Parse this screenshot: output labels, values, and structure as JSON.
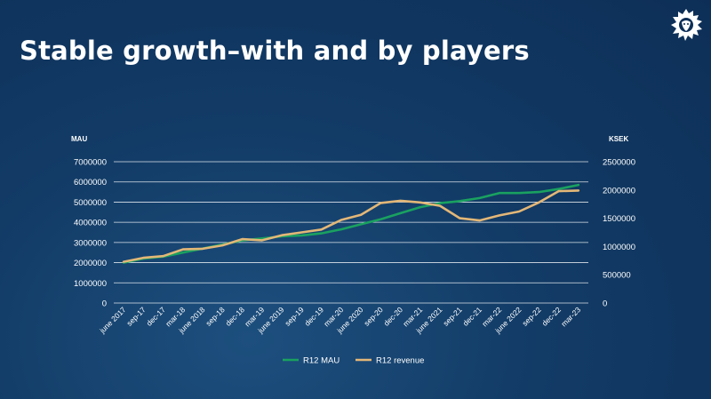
{
  "title": "Stable growth–with and by players",
  "logo_icon": "lion-head-icon",
  "colors": {
    "mau": "#1aa160",
    "revenue": "#e3b777",
    "grid": "#ffffff"
  },
  "chart_data": {
    "type": "line",
    "title": "Stable growth–with and by players",
    "ylabel_left": "MAU",
    "ylabel_right": "KSEK",
    "ylim_left": [
      0,
      7000000
    ],
    "ylim_right": [
      0,
      2500000
    ],
    "yticks_left": [
      "7000000",
      "6000000",
      "5000000",
      "4000000",
      "3000000",
      "2000000",
      "1000000",
      "0"
    ],
    "yticks_right": [
      "2500000",
      "2000000",
      "1500000",
      "1000000",
      "500000",
      "0"
    ],
    "x": [
      "june 2017",
      "sep-17",
      "dec-17",
      "mar-18",
      "june 2018",
      "sep-18",
      "dec-18",
      "mar-19",
      "june 2019",
      "sep-19",
      "dec-19",
      "mar-20",
      "june 2020",
      "sep-20",
      "dec-20",
      "mar-21",
      "june 2021",
      "sep-21",
      "dec-21",
      "mar-22",
      "june 2022",
      "sep-22",
      "dec-22",
      "mar-23"
    ],
    "grid": true,
    "legend_position": "bottom",
    "series": [
      {
        "name": "R12 MAU",
        "axis": "left",
        "values": [
          2000000,
          2200000,
          2300000,
          2500000,
          2700000,
          2900000,
          3100000,
          3200000,
          3300000,
          3350000,
          3450000,
          3650000,
          3900000,
          4150000,
          4450000,
          4750000,
          4950000,
          5050000,
          5200000,
          5450000,
          5450000,
          5500000,
          5650000,
          5850000
        ]
      },
      {
        "name": "R12 revenue",
        "axis": "right",
        "values": [
          730000,
          800000,
          830000,
          950000,
          960000,
          1020000,
          1130000,
          1110000,
          1200000,
          1250000,
          1300000,
          1470000,
          1560000,
          1770000,
          1810000,
          1780000,
          1720000,
          1500000,
          1460000,
          1550000,
          1620000,
          1780000,
          1980000,
          1990000
        ]
      }
    ]
  }
}
